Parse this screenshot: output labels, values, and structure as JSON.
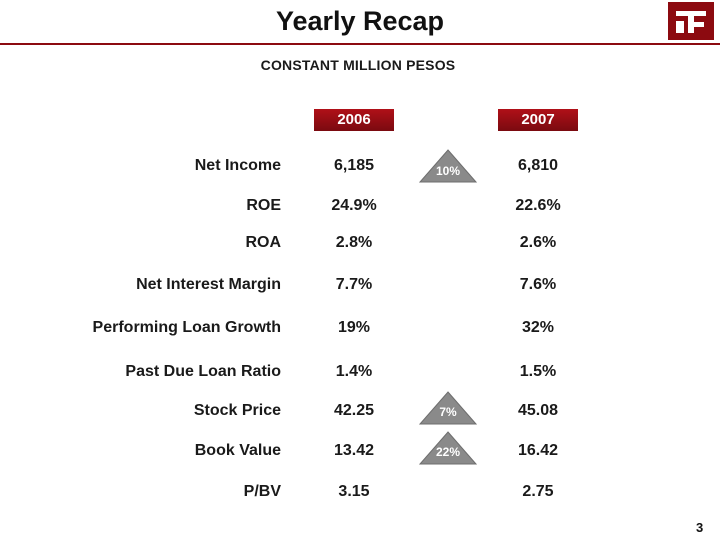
{
  "slide": {
    "title": "Yearly Recap",
    "subtitle": "CONSTANT MILLION PESOS",
    "page_number": "3",
    "brand_color": "#8c0a10"
  },
  "columns": [
    "2006",
    "2007"
  ],
  "rows": [
    {
      "label": "Net Income",
      "y2006": "6,185",
      "y2007": "6,810",
      "growth": "10%"
    },
    {
      "label": "ROE",
      "y2006": "24.9%",
      "y2007": "22.6%"
    },
    {
      "label": "ROA",
      "y2006": "2.8%",
      "y2007": "2.6%"
    },
    {
      "label": "Net Interest Margin",
      "y2006": "7.7%",
      "y2007": "7.6%"
    },
    {
      "label": "Performing Loan Growth",
      "y2006": "19%",
      "y2007": "32%"
    },
    {
      "label": "Past Due Loan Ratio",
      "y2006": "1.4%",
      "y2007": "1.5%"
    },
    {
      "label": "Stock Price",
      "y2006": "42.25",
      "y2007": "45.08",
      "growth": "7%"
    },
    {
      "label": "Book Value",
      "y2006": "13.42",
      "y2007": "16.42",
      "growth": "22%"
    },
    {
      "label": "P/BV",
      "y2006": "3.15",
      "y2007": "2.75"
    }
  ],
  "icons": {
    "logo": "bank-logo-icon",
    "growth_marker": "triangle-up-icon"
  }
}
